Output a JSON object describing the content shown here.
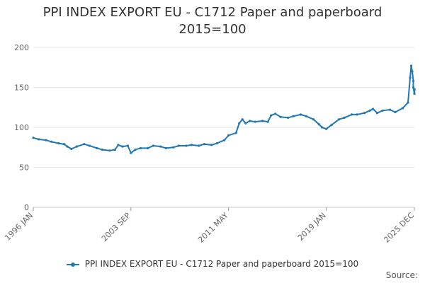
{
  "chart_data": {
    "type": "line",
    "title": "PPI INDEX EXPORT EU - C1712 Paper and paperboard",
    "subtitle": "2015=100",
    "xlabel": "",
    "ylabel": "",
    "ylim": [
      0,
      200
    ],
    "yticks": [
      0,
      50,
      100,
      150,
      200
    ],
    "xlim": [
      "1996-01",
      "2025-12"
    ],
    "xticks": [
      {
        "label": "1996 JAN",
        "date": "1996-01"
      },
      {
        "label": "2003 SEP",
        "date": "2003-09"
      },
      {
        "label": "2011 MAY",
        "date": "2011-05"
      },
      {
        "label": "2019 JAN",
        "date": "2019-01"
      },
      {
        "label": "2025 DEC",
        "date": "2025-12"
      }
    ],
    "grid": true,
    "legend_position": "bottom",
    "series": [
      {
        "name": "PPI INDEX EXPORT EU - C1712 Paper and paperboard 2015=100",
        "color": "#1f77b4",
        "points": [
          [
            "1996-01",
            87
          ],
          [
            "1996-06",
            85
          ],
          [
            "1997-01",
            84
          ],
          [
            "1997-06",
            82
          ],
          [
            "1998-01",
            80
          ],
          [
            "1998-06",
            79
          ],
          [
            "1998-09",
            76
          ],
          [
            "1999-01",
            73
          ],
          [
            "1999-06",
            76
          ],
          [
            "2000-01",
            79
          ],
          [
            "2000-06",
            77
          ],
          [
            "2001-01",
            74
          ],
          [
            "2001-06",
            72
          ],
          [
            "2002-01",
            71
          ],
          [
            "2002-06",
            72
          ],
          [
            "2002-09",
            78
          ],
          [
            "2003-01",
            76
          ],
          [
            "2003-06",
            77
          ],
          [
            "2003-09",
            68
          ],
          [
            "2004-01",
            72
          ],
          [
            "2004-06",
            74
          ],
          [
            "2005-01",
            74
          ],
          [
            "2005-06",
            77
          ],
          [
            "2006-01",
            76
          ],
          [
            "2006-06",
            74
          ],
          [
            "2007-01",
            75
          ],
          [
            "2007-06",
            77
          ],
          [
            "2008-01",
            77
          ],
          [
            "2008-06",
            78
          ],
          [
            "2009-01",
            77
          ],
          [
            "2009-06",
            79
          ],
          [
            "2010-01",
            78
          ],
          [
            "2010-06",
            80
          ],
          [
            "2011-01",
            84
          ],
          [
            "2011-05",
            90
          ],
          [
            "2011-12",
            93
          ],
          [
            "2012-03",
            105
          ],
          [
            "2012-06",
            110
          ],
          [
            "2012-09",
            105
          ],
          [
            "2013-01",
            108
          ],
          [
            "2013-06",
            107
          ],
          [
            "2014-01",
            108
          ],
          [
            "2014-06",
            107
          ],
          [
            "2014-09",
            115
          ],
          [
            "2015-01",
            117
          ],
          [
            "2015-06",
            113
          ],
          [
            "2016-01",
            112
          ],
          [
            "2016-06",
            114
          ],
          [
            "2017-01",
            116
          ],
          [
            "2017-06",
            114
          ],
          [
            "2018-01",
            110
          ],
          [
            "2018-06",
            104
          ],
          [
            "2018-09",
            100
          ],
          [
            "2019-01",
            98
          ],
          [
            "2019-06",
            103
          ],
          [
            "2020-01",
            110
          ],
          [
            "2020-06",
            112
          ],
          [
            "2021-01",
            116
          ],
          [
            "2021-06",
            116
          ],
          [
            "2022-01",
            118
          ],
          [
            "2022-06",
            121
          ],
          [
            "2022-09",
            123
          ],
          [
            "2023-01",
            118
          ],
          [
            "2023-06",
            121
          ],
          [
            "2024-01",
            122
          ],
          [
            "2024-06",
            119
          ],
          [
            "2025-01",
            124
          ],
          [
            "2025-06",
            131
          ],
          [
            "2025-08",
            162
          ],
          [
            "2025-09",
            177
          ],
          [
            "2025-10",
            170
          ],
          [
            "2025-11",
            158
          ],
          [
            "2025-11",
            150
          ],
          [
            "2025-12",
            142
          ],
          [
            "2025-12",
            146
          ],
          [
            "2025-12",
            148
          ]
        ]
      }
    ]
  },
  "legend": {
    "label": "PPI INDEX EXPORT EU - C1712 Paper and paperboard 2015=100"
  },
  "source": {
    "label": "Source:"
  }
}
